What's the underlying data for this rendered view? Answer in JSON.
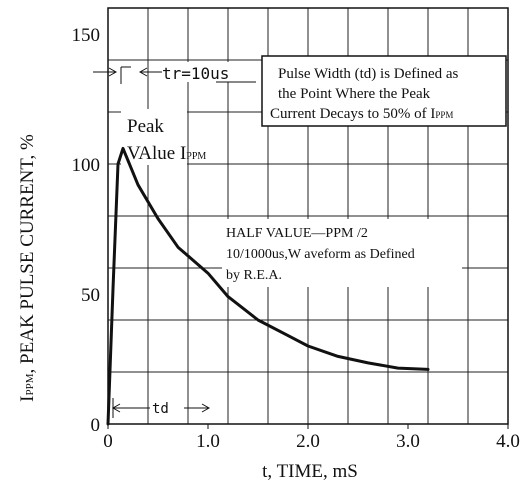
{
  "chart_data": {
    "type": "line",
    "xlabel": "t, TIME, mS",
    "ylabel_main": "I",
    "ylabel_sub": "PPM",
    "ylabel_rest": ", PEAK PULSE CURRENT, %",
    "xlim": [
      0,
      4.0
    ],
    "ylim": [
      0,
      160
    ],
    "grid": true,
    "x_ticks": [
      {
        "value": 0,
        "label": "0"
      },
      {
        "value": 1.0,
        "label": "1.0"
      },
      {
        "value": 2.0,
        "label": "2.0"
      },
      {
        "value": 3.0,
        "label": "3.0"
      },
      {
        "value": 4.0,
        "label": "4.0"
      }
    ],
    "y_ticks": [
      {
        "value": 0,
        "label": "0"
      },
      {
        "value": 50,
        "label": "50"
      },
      {
        "value": 100,
        "label": "100"
      },
      {
        "value": 150,
        "label": "150"
      }
    ],
    "series": [
      {
        "x": [
          0.0,
          0.05,
          0.1,
          0.15,
          0.3,
          0.5,
          0.7,
          1.0,
          1.2,
          1.5,
          1.8,
          2.0,
          2.3,
          2.6,
          2.9,
          3.2
        ],
        "y": [
          0,
          52,
          100,
          106,
          92,
          79,
          68,
          58,
          49,
          40,
          34,
          30,
          26,
          23.5,
          21.5,
          21
        ]
      }
    ],
    "annotations": {
      "tr": "tr=10us",
      "note_line1": "Pulse Width (td) is Defined as",
      "note_line2": "the Point Where the Peak",
      "note_line3_main": "Current Decays to 50% of I",
      "note_line3_sub": "PPM",
      "peak_line1": "Peak",
      "peak_line2_main": "VAlue I",
      "peak_line2_sub": "PPM",
      "half_line1": "HALF VALUE—PPM /2",
      "half_line2": "10/1000us,W aveform as Defined",
      "half_line3": "by R.E.A.",
      "td": "td"
    }
  }
}
